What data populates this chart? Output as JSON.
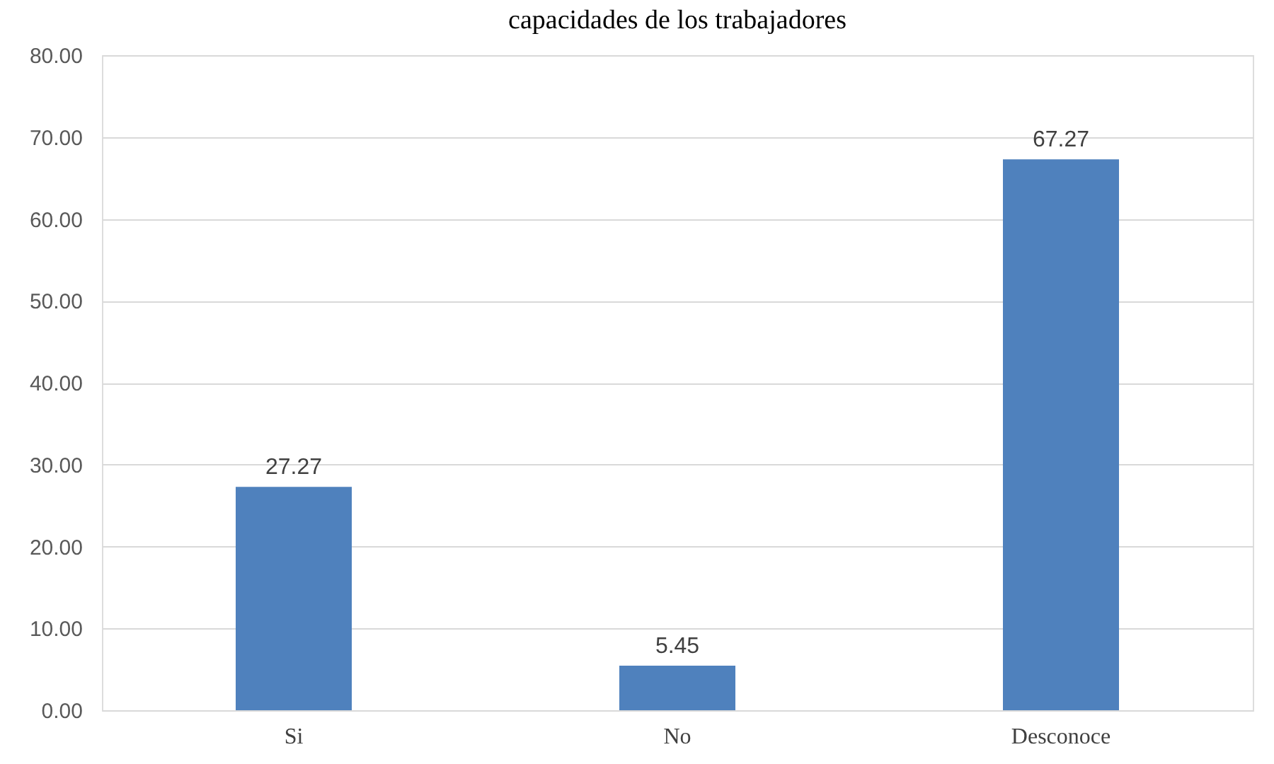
{
  "chart_data": {
    "type": "bar",
    "title": "capacidades de los trabajadores",
    "categories": [
      "Si",
      "No",
      "Desconoce"
    ],
    "values": [
      27.27,
      5.45,
      67.27
    ],
    "color": "#4f81bd",
    "ylim": [
      0,
      80
    ],
    "yticks": [
      {
        "value": 0,
        "label": "0.00"
      },
      {
        "value": 10,
        "label": "10.00"
      },
      {
        "value": 20,
        "label": "20.00"
      },
      {
        "value": 30,
        "label": "30.00"
      },
      {
        "value": 40,
        "label": "40.00"
      },
      {
        "value": 50,
        "label": "50.00"
      },
      {
        "value": 60,
        "label": "60.00"
      },
      {
        "value": 70,
        "label": "70.00"
      },
      {
        "value": 80,
        "label": "80.00"
      }
    ],
    "grid": "y",
    "data_labels": true
  }
}
